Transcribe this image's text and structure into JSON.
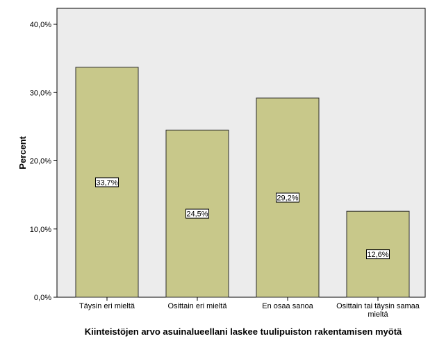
{
  "chart_data": {
    "type": "bar",
    "categories": [
      "Täysin eri mieltä",
      "Osittain eri mieltä",
      "En osaa sanoa",
      "Osittain tai täysin samaa mieltä"
    ],
    "category_lines": [
      [
        "Täysin eri mieltä"
      ],
      [
        "Osittain eri mieltä"
      ],
      [
        "En osaa sanoa"
      ],
      [
        "Osittain tai täysin samaa",
        "mieltä"
      ]
    ],
    "values": [
      33.7,
      24.5,
      29.2,
      12.6
    ],
    "data_labels": [
      "33,7%",
      "24,5%",
      "29,2%",
      "12,6%"
    ],
    "xlabel": "Kiinteistöjen arvo asuinalueellani laskee tuulipuiston rakentamisen myötä",
    "ylabel": "Percent",
    "ylim": [
      0,
      40
    ],
    "yticks": [
      0,
      10,
      20,
      30,
      40
    ],
    "ytick_labels": [
      "0,0%",
      "10,0%",
      "20,0%",
      "30,0%",
      "40,0%"
    ],
    "grid": false,
    "colors": {
      "bar_fill": "#c8c88a",
      "bar_stroke": "#2b2b2b",
      "plot_bg": "#ececec"
    }
  }
}
